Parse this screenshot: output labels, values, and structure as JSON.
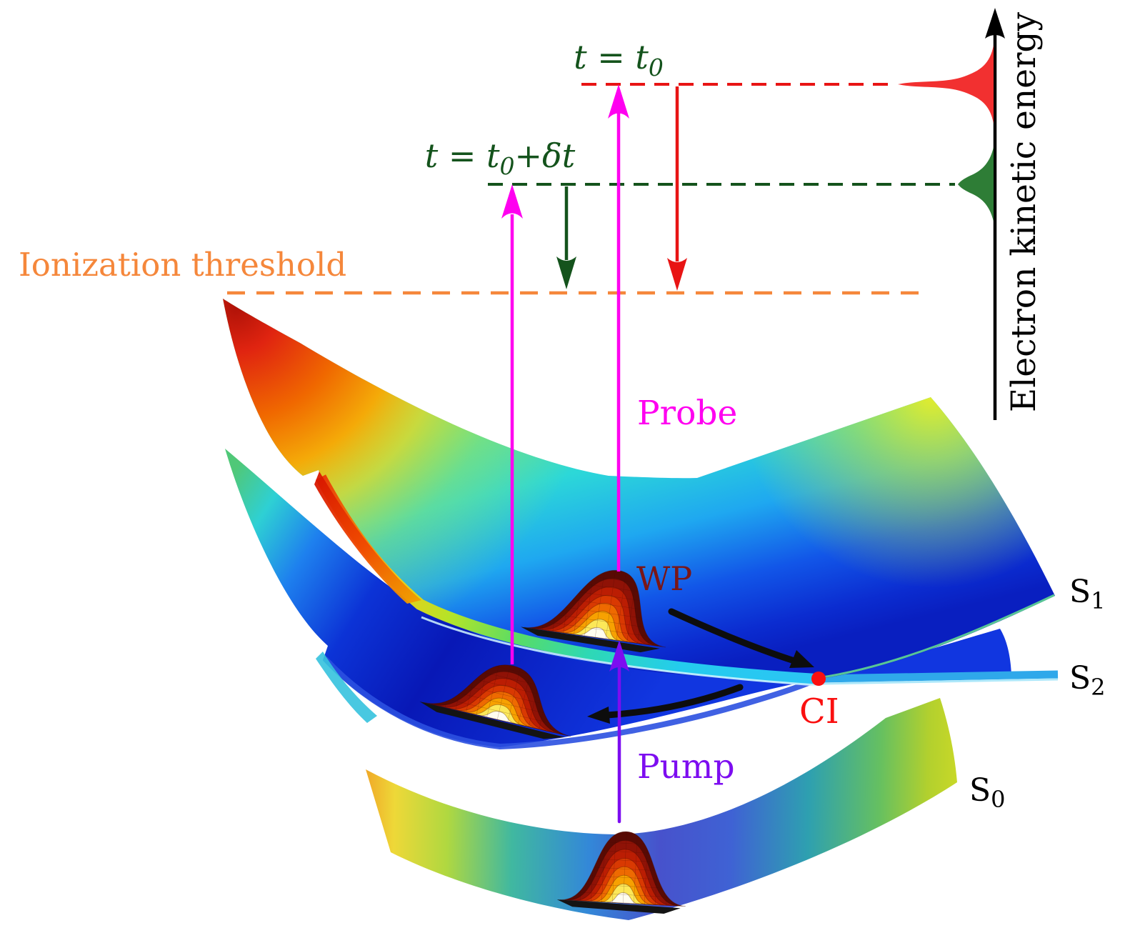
{
  "figure": {
    "type": "pump-probe photoelectron spectroscopy scheme with potential energy surfaces and conical intersection"
  },
  "labels": {
    "time_t0": {
      "pre": "t = t",
      "sub": "0",
      "post": ""
    },
    "time_t0_dt": {
      "pre": "t = t",
      "sub": "0",
      "post": "+δt"
    },
    "ionization_threshold": "Ionization threshold",
    "probe": "Probe",
    "pump": "Pump",
    "wavepacket": "WP",
    "conical_intersection": "CI",
    "surface_s1": {
      "base": "S",
      "sub": "1"
    },
    "surface_s2": {
      "base": "S",
      "sub": "2"
    },
    "surface_s0": {
      "base": "S",
      "sub": "0"
    },
    "energy_axis": "Electron kinetic energy"
  },
  "colors": {
    "probe_magenta": "#ff00f0",
    "pump_purple": "#7d0df0",
    "signal_red": "#e81414",
    "peak_red": "#f23030",
    "signal_dark_green": "#14531c",
    "peak_green": "#2e7d36",
    "ionization_orange": "#f5873b",
    "wp_dark_red": "#7a1616",
    "ci_red": "#fa1010",
    "axis_black": "#000000"
  }
}
